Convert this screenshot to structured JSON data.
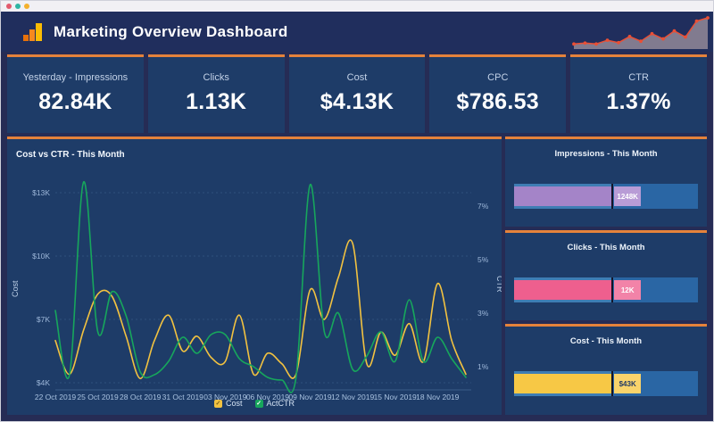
{
  "window": {
    "dots": [
      "#e25a6d",
      "#2fb5a3",
      "#f4b02c"
    ]
  },
  "header": {
    "title": "Marketing Overview Dashboard",
    "accent_color": "#e5823b"
  },
  "kpis": [
    {
      "label": "Yesterday - Impressions",
      "value": "82.84K"
    },
    {
      "label": "Clicks",
      "value": "1.13K"
    },
    {
      "label": "Cost",
      "value": "$4.13K"
    },
    {
      "label": "CPC",
      "value": "$786.53"
    },
    {
      "label": "CTR",
      "value": "1.37%"
    }
  ],
  "chart_data": [
    {
      "type": "line",
      "title": "Cost vs CTR - This Month",
      "x_tick_labels": [
        "22 Oct 2019",
        "25 Oct 2019",
        "28 Oct 2019",
        "31 Oct 2019",
        "03 Nov 2019",
        "06 Nov 2019",
        "09 Nov 2019",
        "12 Nov 2019",
        "15 Nov 2019",
        "18 Nov 2019"
      ],
      "x_tick_every": 3,
      "left_axis": {
        "title": "Cost",
        "tick_labels": [
          "$4K",
          "$7K",
          "$10K",
          "$13K"
        ],
        "tick_values": [
          4,
          7,
          10,
          13
        ],
        "unit": "$K"
      },
      "right_axis": {
        "title": "CTR",
        "tick_labels": [
          "1%",
          "3%",
          "5%",
          "7%"
        ],
        "tick_values": [
          1,
          3,
          5,
          7
        ],
        "unit": "%"
      },
      "series": [
        {
          "name": "Cost",
          "axis": "left",
          "color": "#f2c240",
          "values": [
            6.0,
            4.4,
            6.5,
            8.2,
            8.1,
            6.2,
            4.2,
            6.0,
            7.2,
            5.5,
            6.2,
            5.2,
            5.0,
            7.2,
            4.4,
            5.4,
            4.9,
            4.4,
            8.4,
            7.0,
            9.0,
            10.6,
            4.9,
            6.4,
            5.3,
            6.8,
            5.0,
            8.7,
            6.0,
            4.4
          ]
        },
        {
          "name": "ActCTR",
          "axis": "right",
          "color": "#17a65c",
          "values": [
            3.1,
            0.7,
            7.9,
            2.3,
            3.8,
            2.9,
            0.8,
            0.7,
            1.2,
            2.1,
            1.5,
            2.2,
            2.2,
            1.3,
            1.0,
            0.6,
            0.5,
            0.6,
            7.8,
            2.3,
            3.0,
            0.9,
            1.4,
            2.3,
            1.2,
            3.5,
            1.2,
            2.1,
            1.3,
            0.6
          ]
        }
      ],
      "legend": [
        {
          "label": "Cost",
          "color": "#f2c240",
          "check_color": "#7a611a"
        },
        {
          "label": "ActCTR",
          "color": "#17a65c",
          "check_color": "#ffffff"
        }
      ]
    },
    {
      "type": "bullet",
      "title": "Impressions - This Month",
      "value_label": "1248K",
      "value_pct": 53,
      "target_pct": 53,
      "bar_color": "#a484c8",
      "chip_color": "#b89cd6",
      "chip_text_color": "#ffffff",
      "track_color": "#2a66a4",
      "range_color": "#3e7db4",
      "marker_color": "#131528"
    },
    {
      "type": "bullet",
      "title": "Clicks - This Month",
      "value_label": "12K",
      "value_pct": 53,
      "target_pct": 53,
      "bar_color": "#ee5f8e",
      "chip_color": "#f283a8",
      "chip_text_color": "#ffffff",
      "track_color": "#2a66a4",
      "range_color": "#3e7db4",
      "marker_color": "#131528"
    },
    {
      "type": "bullet",
      "title": "Cost - This Month",
      "value_label": "$43K",
      "value_pct": 53,
      "target_pct": 53,
      "bar_color": "#f7c845",
      "chip_color": "#f9d36b",
      "chip_text_color": "#233a66",
      "track_color": "#2a66a4",
      "range_color": "#3e7db4",
      "marker_color": "#131528"
    },
    {
      "type": "sparkline-line",
      "title": "",
      "color": "#ea4f35",
      "fill_color": "#9a8f9c",
      "values": [
        0.7,
        0.9,
        0.7,
        1.5,
        1.0,
        2.3,
        1.3,
        2.9,
        1.8,
        3.5,
        2.2,
        5.6,
        6.3
      ]
    }
  ]
}
